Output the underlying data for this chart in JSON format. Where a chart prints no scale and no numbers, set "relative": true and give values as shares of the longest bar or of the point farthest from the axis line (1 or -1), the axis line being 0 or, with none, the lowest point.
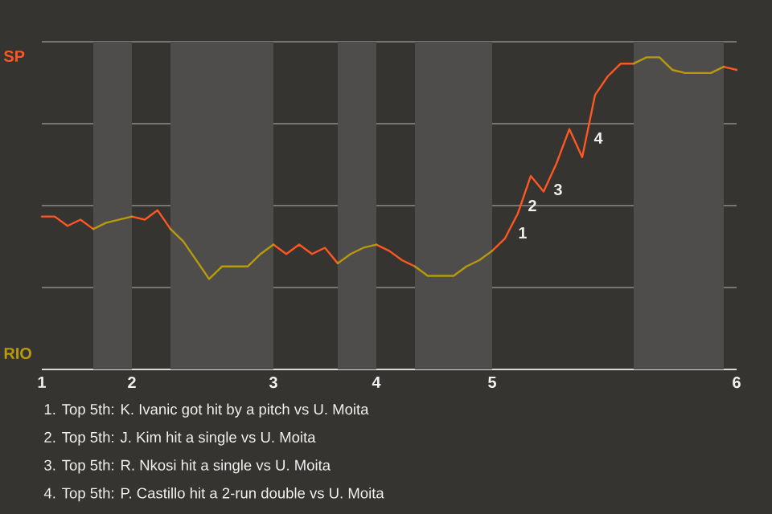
{
  "chart_data": {
    "type": "line",
    "relative": true,
    "categories": [
      "1",
      null,
      null,
      null,
      null,
      null,
      null,
      "2",
      null,
      null,
      null,
      null,
      null,
      null,
      null,
      null,
      null,
      null,
      "3",
      null,
      null,
      null,
      null,
      null,
      null,
      null,
      "4",
      null,
      null,
      null,
      null,
      null,
      null,
      null,
      null,
      "5",
      null,
      null,
      null,
      null,
      null,
      null,
      null,
      null,
      null,
      null,
      null,
      null,
      null,
      null,
      null,
      null,
      null,
      null,
      "6"
    ],
    "series": [
      {
        "name": "SP",
        "color": "#ff5722",
        "values": [
          0.49,
          0.49,
          0.46,
          0.48,
          0.45,
          null,
          null,
          0.49,
          0.48,
          0.51,
          0.45,
          null,
          null,
          null,
          null,
          null,
          null,
          null,
          0.4,
          0.37,
          0.4,
          0.37,
          0.39,
          0.34,
          null,
          null,
          0.4,
          0.38,
          0.35,
          0.33,
          null,
          null,
          null,
          null,
          null,
          0.38,
          0.42,
          0.5,
          0.62,
          0.57,
          0.66,
          0.77,
          0.68,
          0.88,
          0.94,
          0.98,
          0.98,
          null,
          null,
          null,
          null,
          null,
          null,
          0.97,
          0.96
        ],
        "line_style": "solid"
      },
      {
        "name": "RIO",
        "color": "#b89a0c",
        "values": [
          null,
          null,
          null,
          null,
          0.45,
          0.47,
          0.48,
          0.49,
          null,
          null,
          0.45,
          0.41,
          0.35,
          0.29,
          0.33,
          0.33,
          0.33,
          0.37,
          0.4,
          null,
          null,
          null,
          null,
          0.34,
          0.37,
          0.39,
          0.4,
          null,
          null,
          0.33,
          0.3,
          0.3,
          0.3,
          0.33,
          0.35,
          0.38,
          null,
          null,
          null,
          null,
          null,
          null,
          null,
          null,
          null,
          null,
          0.98,
          1,
          1,
          0.96,
          0.95,
          0.95,
          0.95,
          0.97,
          null
        ]
      }
    ],
    "grid": "y",
    "annotations": [
      "1",
      "2",
      "3",
      "4",
      "1. Top 5th: K. Ivanic got hit by a pitch vs U. Moita",
      "2. Top 5th: J. Kim hit a single vs U. Moita",
      "3. Top 5th: R. Nkosi hit a single vs U. Moita",
      "4. Top 5th: P. Castillo hit a 2-run double vs U. Moita"
    ]
  }
}
